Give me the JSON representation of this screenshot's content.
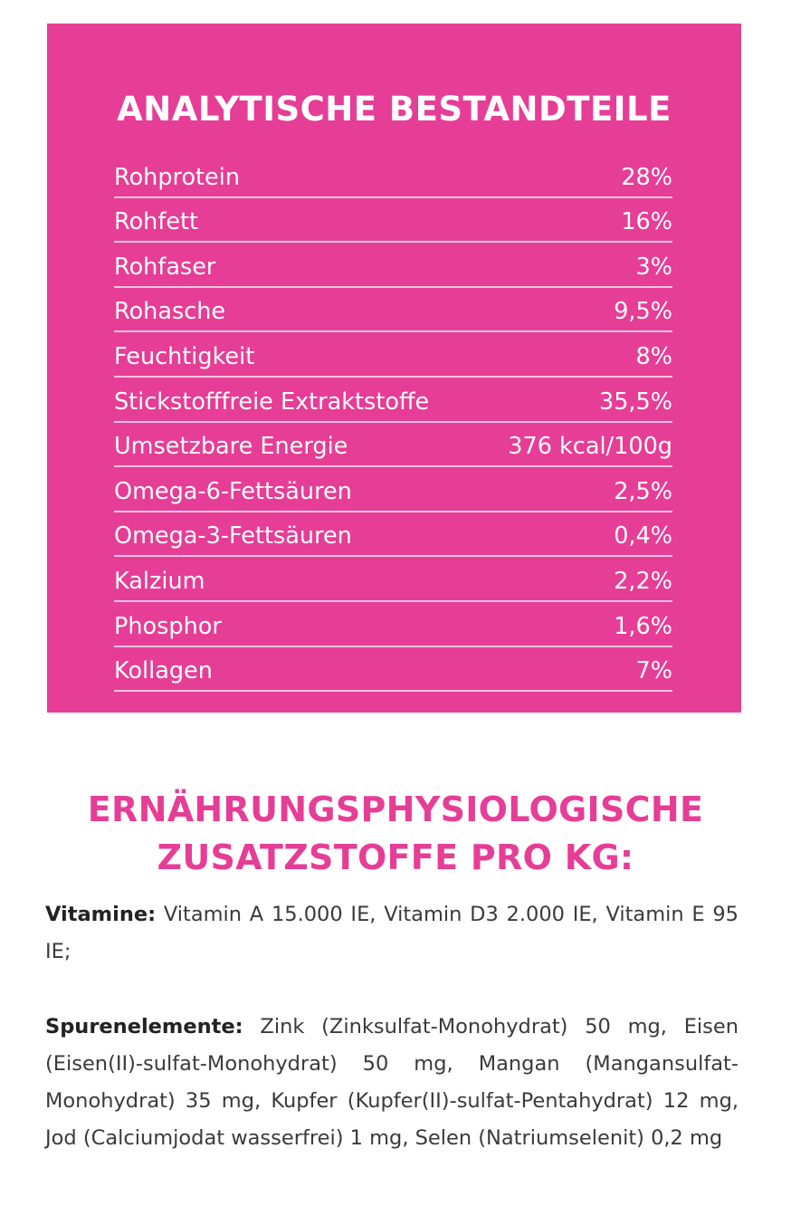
{
  "analysis": {
    "title": "ANALYTISCHE BESTANDTEILE",
    "rows": [
      {
        "name": "Rohprotein",
        "value": "28%"
      },
      {
        "name": "Rohfett",
        "value": "16%"
      },
      {
        "name": "Rohfaser",
        "value": "3%"
      },
      {
        "name": "Rohasche",
        "value": "9,5%"
      },
      {
        "name": "Feuchtigkeit",
        "value": "8%"
      },
      {
        "name": "Stickstofffreie Extraktstoffe",
        "value": "35,5%"
      },
      {
        "name": "Umsetzbare Energie",
        "value": "376 kcal/100g"
      },
      {
        "name": "Omega-6-Fettsäuren",
        "value": "2,5%"
      },
      {
        "name": "Omega-3-Fettsäuren",
        "value": "0,4%"
      },
      {
        "name": "Kalzium",
        "value": "2,2%"
      },
      {
        "name": "Phosphor",
        "value": "1,6%"
      },
      {
        "name": "Kollagen",
        "value": "7%"
      }
    ]
  },
  "additives": {
    "title_line1": "ERNÄHRUNGSPHYSIOLOGISCHE",
    "title_line2": "ZUSATZSTOFFE PRO KG:",
    "vitamine_label": "Vitamine:",
    "vitamine_text": " Vitamin A 15.000 IE, Vitamin D3 2.000 IE, Vitamin E 95 IE;",
    "spuren_label": "Spurenelemente:",
    "spuren_text": " Zink (Zinksulfat-Monohydrat) 50 mg, Eisen (Eisen(II)-sulfat-Monohydrat) 50 mg, Mangan (Mangansulfat-Monohydrat) 35 mg, Kupfer (Kupfer(II)-sulfat-Pentahydrat) 12 mg, Jod (Calciumjodat wasserfrei) 1 mg, Selen (Natriumselenit) 0,2 mg"
  },
  "colors": {
    "accent_pink": "#e63d96",
    "text_dark": "#3a3a3a"
  }
}
